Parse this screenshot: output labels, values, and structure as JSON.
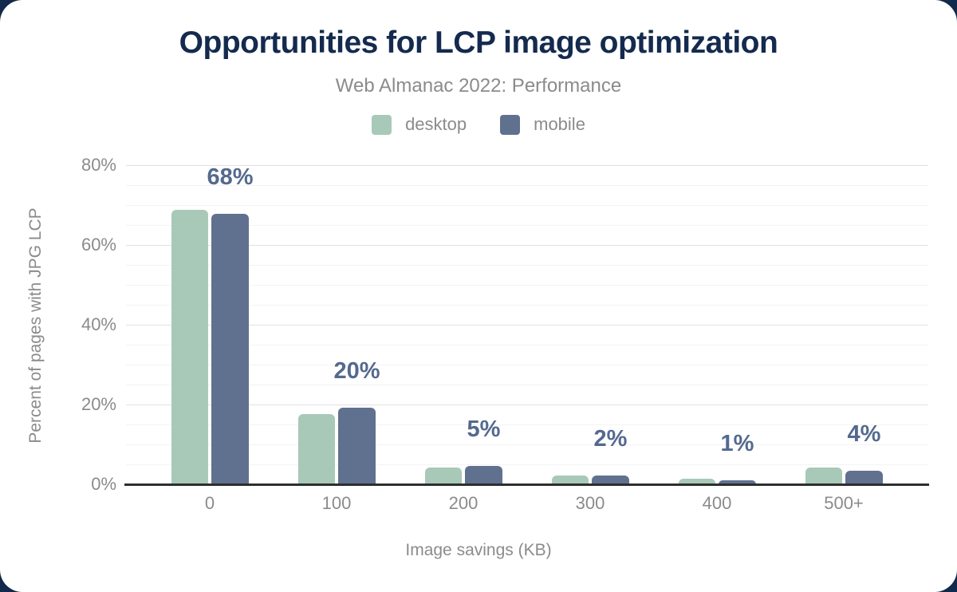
{
  "page": {
    "background_color": "#13294b",
    "card_color": "#ffffff"
  },
  "header": {
    "title": "Opportunities for LCP image optimization",
    "subtitle": "Web Almanac 2022: Performance",
    "title_color": "#142a4e",
    "subtitle_color": "#8b8b8b"
  },
  "legend": {
    "items": [
      {
        "label": "desktop",
        "color": "#a8c9b8"
      },
      {
        "label": "mobile",
        "color": "#60718f"
      }
    ]
  },
  "chart_data": {
    "type": "bar",
    "title": "Opportunities for LCP image optimization",
    "subtitle": "Web Almanac 2022: Performance",
    "categories": [
      "0",
      "100",
      "200",
      "300",
      "400",
      "500+"
    ],
    "series": [
      {
        "name": "desktop",
        "color": "#a8c9b8",
        "values": [
          68.8,
          17.6,
          4.2,
          2.3,
          1.5,
          4.2
        ]
      },
      {
        "name": "mobile",
        "color": "#60718f",
        "values": [
          67.9,
          19.3,
          4.6,
          2.2,
          1.0,
          3.4
        ]
      }
    ],
    "data_labels": {
      "values": [
        "68%",
        "20%",
        "5%",
        "2%",
        "1%",
        "4%"
      ],
      "anchored_to_series": "mobile",
      "color": "#54698f"
    },
    "xlabel": "Image savings (KB)",
    "ylabel": "Percent of pages with JPG LCP",
    "ylim": [
      0,
      80
    ],
    "yticks": [
      {
        "value": 0,
        "label": "0%"
      },
      {
        "value": 20,
        "label": "20%"
      },
      {
        "value": 40,
        "label": "40%"
      },
      {
        "value": 60,
        "label": "60%"
      },
      {
        "value": 80,
        "label": "80%"
      }
    ],
    "grid": {
      "minor_step": 5,
      "major_step": 20,
      "minor_color": "#f3f3f3",
      "major_color": "#e1e1e1"
    },
    "legend_position": "top",
    "axis_line_color": "#2e2e2e"
  }
}
